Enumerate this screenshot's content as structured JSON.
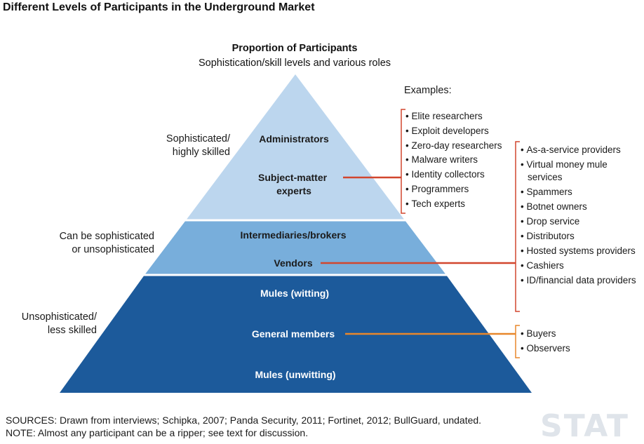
{
  "title": "Different Levels of Participants in the Underground Market",
  "header": {
    "heading": "Proportion of Participants",
    "subheading": "Sophistication/skill levels and various roles"
  },
  "pyramid": {
    "tiers": [
      {
        "roles": [
          "Administrators",
          "Subject-matter experts"
        ],
        "color": "#bcd6ee"
      },
      {
        "roles": [
          "Intermediaries/brokers",
          "Vendors"
        ],
        "color": "#78aedb"
      },
      {
        "roles": [
          "Mules (witting)",
          "General members",
          "Mules (unwitting)"
        ],
        "color": "#1c5a9b"
      }
    ]
  },
  "side_labels": [
    "Sophisticated/ highly skilled",
    "Can be sophisticated or unsophisticated",
    "Unsophisticated/ less skilled"
  ],
  "examples": {
    "heading": "Examples:",
    "experts": [
      "Elite researchers",
      "Exploit developers",
      "Zero-day researchers",
      "Malware writers",
      "Identity collectors",
      "Programmers",
      "Tech experts"
    ],
    "vendors": [
      "As-a-service providers",
      "Virtual money mule services",
      "Spammers",
      "Botnet owners",
      "Drop service",
      "Distributors",
      "Hosted systems providers",
      "Cashiers",
      "ID/financial data providers"
    ],
    "general": [
      "Buyers",
      "Observers"
    ]
  },
  "connector_colors": {
    "red": "#d2462e",
    "orange": "#e8872b"
  },
  "sources": "SOURCES: Drawn from interviews; Schipka, 2007; Panda Security, 2011; Fortinet, 2012; BullGuard, undated.",
  "note": "NOTE: Almost any participant can be a ripper; see text for discussion.",
  "watermark": "STAT"
}
